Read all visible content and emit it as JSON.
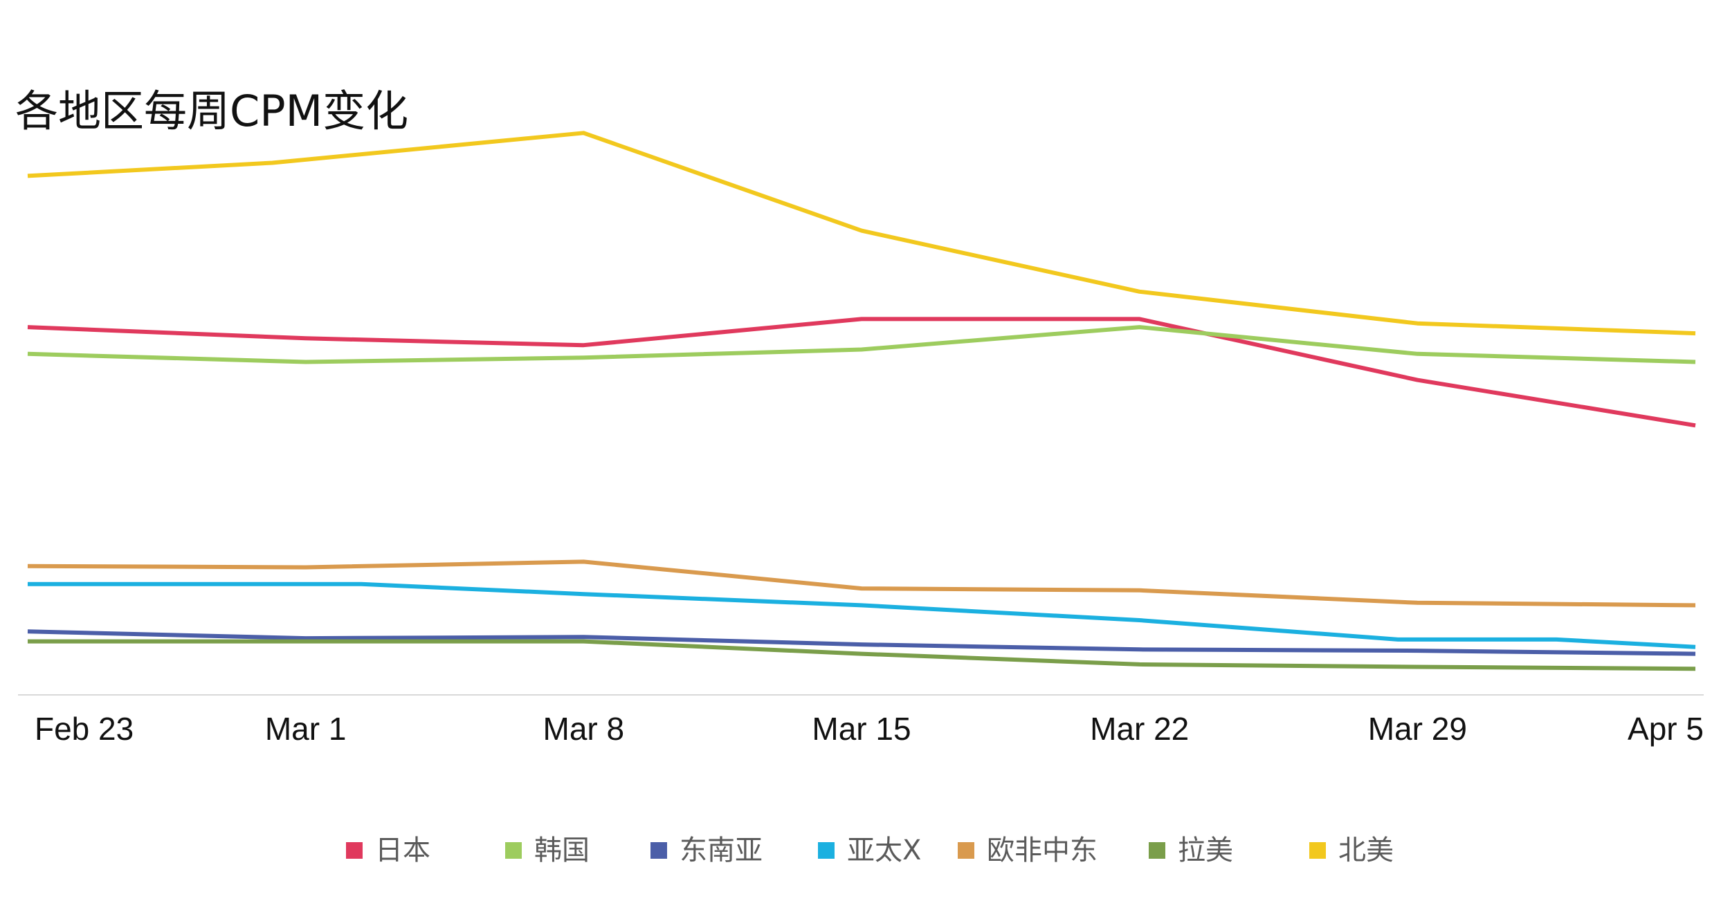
{
  "chart_data": {
    "type": "line",
    "title": "各地区每周CPM变化",
    "xlabel": "",
    "ylabel": "",
    "ylim": [
      0,
      10
    ],
    "grid": false,
    "legend_position": "bottom",
    "categories": [
      "Feb 23",
      "Mar 1",
      "Mar 8",
      "Mar 15",
      "Mar 22",
      "Mar 29",
      "Apr 5"
    ],
    "series": [
      {
        "name": "日本",
        "color": "#E0395D",
        "x": [
          0,
          1,
          2,
          3,
          4,
          5,
          6
        ],
        "values": [
          5.91,
          5.73,
          5.62,
          6.04,
          6.04,
          5.06,
          4.33
        ]
      },
      {
        "name": "韩国",
        "color": "#9DCC5E",
        "x": [
          0,
          1,
          2,
          3,
          4,
          5,
          6
        ],
        "values": [
          5.48,
          5.35,
          5.42,
          5.55,
          5.91,
          5.48,
          5.35
        ]
      },
      {
        "name": "东南亚",
        "color": "#4B5EA8",
        "x": [
          0,
          1,
          2,
          3,
          4,
          5,
          6
        ],
        "values": [
          1.02,
          0.91,
          0.93,
          0.81,
          0.73,
          0.71,
          0.66
        ]
      },
      {
        "name": "亚太X",
        "color": "#1BB0E0",
        "x": [
          0,
          1.2,
          2,
          3,
          4,
          4.93,
          5.5,
          6
        ],
        "values": [
          1.78,
          1.78,
          1.62,
          1.44,
          1.2,
          0.89,
          0.89,
          0.77
        ]
      },
      {
        "name": "欧非中东",
        "color": "#D99A4E",
        "x": [
          0,
          1,
          2,
          3,
          4,
          5,
          6
        ],
        "values": [
          2.07,
          2.05,
          2.14,
          1.71,
          1.68,
          1.48,
          1.44
        ]
      },
      {
        "name": "拉美",
        "color": "#7A9E4A",
        "x": [
          0,
          1,
          2,
          3,
          4,
          5,
          6
        ],
        "values": [
          0.86,
          0.86,
          0.86,
          0.66,
          0.49,
          0.45,
          0.42
        ]
      },
      {
        "name": "北美",
        "color": "#F2C81E",
        "x": [
          0,
          0.88,
          2,
          3,
          4,
          5,
          6
        ],
        "values": [
          8.34,
          8.55,
          9.03,
          7.46,
          6.48,
          5.97,
          5.81
        ]
      }
    ]
  }
}
